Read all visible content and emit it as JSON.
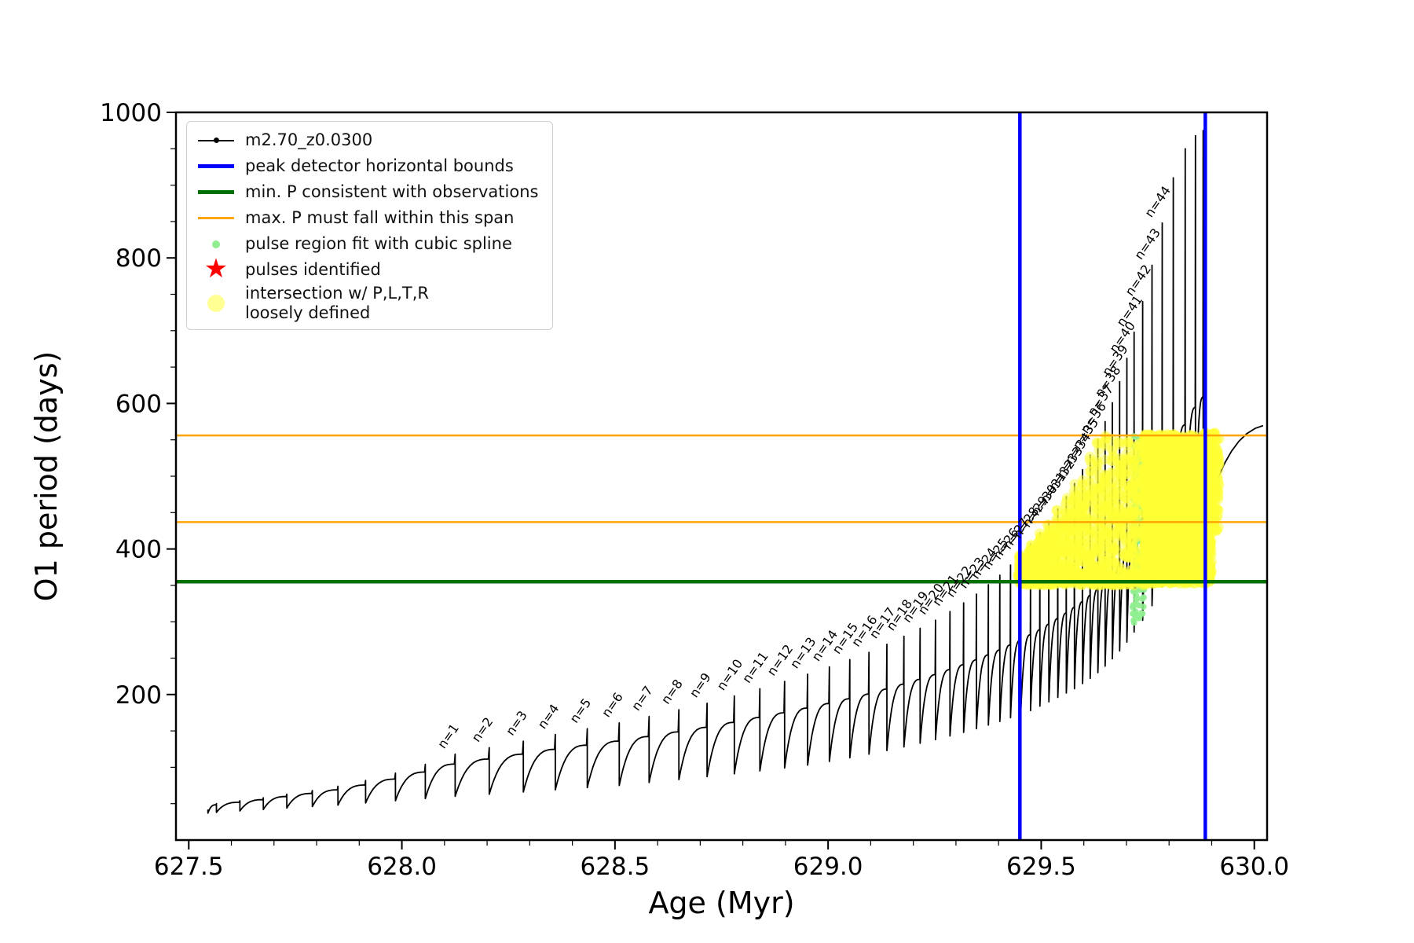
{
  "chart_data": {
    "type": "line",
    "title": "",
    "xlabel": "Age (Myr)",
    "ylabel": "O1 period (days)",
    "xlim": [
      627.47,
      630.03
    ],
    "ylim": [
      0,
      1000
    ],
    "xticks": [
      627.5,
      628.0,
      628.5,
      629.0,
      629.5,
      630.0
    ],
    "xtick_labels": [
      "627.5",
      "628.0",
      "628.5",
      "629.0",
      "629.5",
      "630.0"
    ],
    "yticks": [
      200,
      400,
      600,
      800,
      1000
    ],
    "ytick_labels": [
      "200",
      "400",
      "600",
      "800",
      "1000"
    ],
    "x_minor_step": 0.1,
    "y_minor_step": 50,
    "grid": false,
    "legend_position": "upper-left",
    "series_name": "m2.70_z0.0300",
    "series_color": "#000000",
    "pulses_format": [
      "age_myr",
      "peak_period_days",
      "post_drop_period_days",
      "label"
    ],
    "pulses": [
      [
        627.545,
        42,
        37
      ],
      [
        627.565,
        50,
        38
      ],
      [
        627.62,
        54,
        40
      ],
      [
        627.675,
        58,
        42
      ],
      [
        627.73,
        63,
        44
      ],
      [
        627.79,
        68,
        46
      ],
      [
        627.85,
        74,
        48
      ],
      [
        627.915,
        82,
        51
      ],
      [
        627.985,
        92,
        54
      ],
      [
        628.055,
        104,
        57
      ],
      [
        628.125,
        118,
        60,
        "n=1"
      ],
      [
        628.205,
        127,
        63,
        "n=2"
      ],
      [
        628.285,
        136,
        66,
        "n=3"
      ],
      [
        628.36,
        145,
        69,
        "n=4"
      ],
      [
        628.435,
        153,
        72,
        "n=5"
      ],
      [
        628.51,
        161,
        75,
        "n=6"
      ],
      [
        628.58,
        170,
        79,
        "n=7"
      ],
      [
        628.65,
        179,
        83,
        "n=8"
      ],
      [
        628.716,
        188,
        87,
        "n=9"
      ],
      [
        628.78,
        198,
        91,
        "n=10"
      ],
      [
        628.84,
        208,
        95,
        "n=11"
      ],
      [
        628.898,
        218,
        99,
        "n=12"
      ],
      [
        628.952,
        228,
        103,
        "n=13"
      ],
      [
        629.003,
        238,
        108,
        "n=14"
      ],
      [
        629.051,
        248,
        113,
        "n=15"
      ],
      [
        629.096,
        258,
        118,
        "n=16"
      ],
      [
        629.138,
        269,
        123,
        "n=17"
      ],
      [
        629.178,
        280,
        128,
        "n=18"
      ],
      [
        629.216,
        291,
        133,
        "n=19"
      ],
      [
        629.252,
        302,
        138,
        "n=20"
      ],
      [
        629.286,
        314,
        143,
        "n=21"
      ],
      [
        629.318,
        326,
        148,
        "n=22"
      ],
      [
        629.348,
        338,
        153,
        "n=23"
      ],
      [
        629.376,
        351,
        158,
        "n=24"
      ],
      [
        629.403,
        364,
        163,
        "n=25"
      ],
      [
        629.428,
        378,
        168,
        "n=26"
      ],
      [
        629.452,
        392,
        173,
        "n=27"
      ],
      [
        629.475,
        407,
        178,
        "n=28"
      ],
      [
        629.497,
        422,
        184,
        "n=29"
      ],
      [
        629.518,
        438,
        190,
        "n=30"
      ],
      [
        629.539,
        455,
        196,
        "n=31"
      ],
      [
        629.559,
        472,
        202,
        "n=32"
      ],
      [
        629.578,
        490,
        208,
        "n=33"
      ],
      [
        629.597,
        509,
        215,
        "n=34"
      ],
      [
        629.615,
        529,
        222,
        "n=35"
      ],
      [
        629.633,
        551,
        230,
        "n=36"
      ],
      [
        629.65,
        575,
        239,
        "n=37"
      ],
      [
        629.667,
        601,
        249,
        "n=38"
      ],
      [
        629.684,
        630,
        260,
        "n=39"
      ],
      [
        629.701,
        662,
        272,
        "n=40"
      ],
      [
        629.718,
        698,
        286,
        "n=41"
      ],
      [
        629.738,
        740,
        302,
        "n=42"
      ],
      [
        629.76,
        790,
        322,
        "n=43"
      ],
      [
        629.784,
        848,
        348,
        "n=44"
      ],
      [
        629.81,
        910,
        375
      ],
      [
        629.838,
        950,
        402
      ],
      [
        629.862,
        968,
        420
      ],
      [
        629.88,
        975,
        435
      ]
    ],
    "tail": {
      "pseudo_age": 630.07,
      "shoulder": 572
    },
    "hlines": [
      {
        "name": "min-period-line",
        "y": 355,
        "color": "#007000",
        "width": 4.5,
        "label": "min. P consistent with observations"
      },
      {
        "name": "max-period-span-lower-line",
        "y": 437,
        "color": "#FFA500",
        "width": 2.5,
        "label": "max. P must fall within this span"
      },
      {
        "name": "max-period-span-upper-line",
        "y": 556,
        "color": "#FFA500",
        "width": 2.5,
        "label": "max. P must fall within this span"
      }
    ],
    "vlines": [
      {
        "name": "peak-bound-left-line",
        "x": 629.45,
        "color": "#0000FF",
        "width": 4.5,
        "label": "peak detector horizontal bounds"
      },
      {
        "name": "peak-bound-right-line",
        "x": 629.885,
        "color": "#0000FF",
        "width": 4.5,
        "label": "peak detector horizontal bounds"
      }
    ],
    "scatter": {
      "spline_fit": {
        "name": "pulse region fit with cubic spline",
        "color": "#90EE90",
        "radius": 4,
        "opacity": 0.9,
        "regions": [
          {
            "shape": "blob",
            "x0": 629.714,
            "x1": 629.742,
            "y0": 298,
            "y1": 556,
            "count": 150
          }
        ]
      },
      "intersection": {
        "name": "intersection w/ P,L,T,R loosely defined",
        "color": "#FFFF33",
        "radius": 6.5,
        "opacity": 0.5,
        "regions": [
          {
            "shape": "blob",
            "x0": 629.445,
            "x1": 629.745,
            "y0": 350,
            "y1": 367,
            "count": 330
          },
          {
            "shape": "wedge",
            "x0": 629.45,
            "x1": 629.745,
            "y0": 352,
            "top0": 380,
            "top1": 556,
            "count": 520
          },
          {
            "shape": "columns",
            "halfwidth": 0.004,
            "y0": 352,
            "count_per": 30,
            "cols": [
              [
                629.452,
                392
              ],
              [
                629.475,
                407
              ],
              [
                629.497,
                422
              ],
              [
                629.518,
                438
              ],
              [
                629.539,
                455
              ],
              [
                629.559,
                472
              ],
              [
                629.578,
                490
              ],
              [
                629.597,
                509
              ],
              [
                629.615,
                529
              ],
              [
                629.633,
                551
              ],
              [
                629.65,
                556
              ],
              [
                629.667,
                556
              ],
              [
                629.684,
                556
              ],
              [
                629.701,
                556
              ],
              [
                629.718,
                556
              ]
            ]
          },
          {
            "shape": "blob",
            "x0": 629.74,
            "x1": 629.9,
            "y0": 352,
            "y1": 558,
            "count": 2300
          },
          {
            "shape": "blob",
            "x0": 629.882,
            "x1": 629.918,
            "y0": 425,
            "y1": 560,
            "count": 230
          }
        ]
      }
    }
  },
  "legend": {
    "entries": [
      {
        "label": "m2.70_z0.0300",
        "marker": "line-dot",
        "color": "#000000"
      },
      {
        "label": "peak detector horizontal bounds",
        "marker": "line-thick",
        "color": "#0000FF"
      },
      {
        "label": "min. P consistent with observations",
        "marker": "line-thick",
        "color": "#007000"
      },
      {
        "label": "max. P must fall within this span",
        "marker": "line",
        "color": "#FFA500"
      },
      {
        "label": "pulse region fit with cubic spline",
        "marker": "dot-small",
        "color": "#90EE90"
      },
      {
        "label": "pulses identified",
        "marker": "star",
        "color": "#FF0000"
      },
      {
        "label": "intersection w/ P,L,T,R\nloosely defined",
        "marker": "dot-large",
        "color": "#FFFF80"
      }
    ]
  }
}
